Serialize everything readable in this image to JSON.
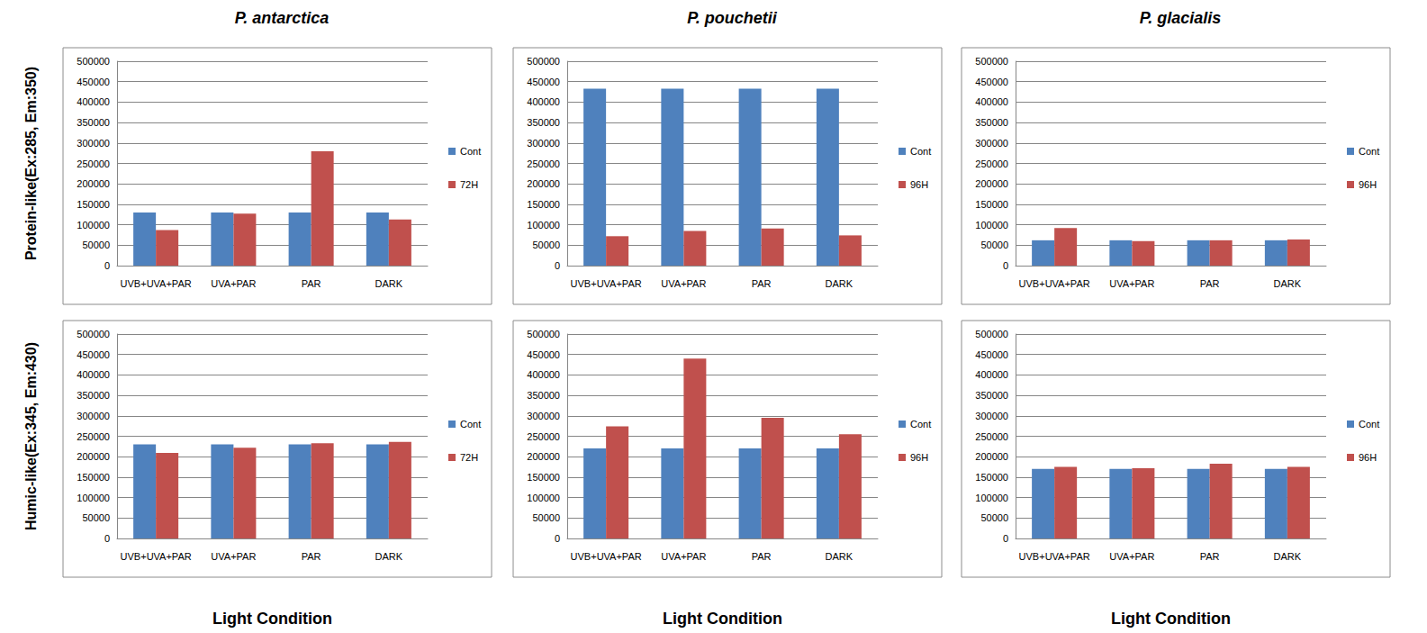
{
  "chart_data": [
    {
      "type": "bar",
      "title": "P. antarctica",
      "ylabel": "Protein-like(Ex:285, Em:350)",
      "categories": [
        "UVB+UVA+PAR",
        "UVA+PAR",
        "PAR",
        "DARK"
      ],
      "series": [
        {
          "name": "Cont",
          "color": "#4f81bd",
          "values": [
            130000,
            130000,
            130000,
            130000
          ]
        },
        {
          "name": "72H",
          "color": "#c0504d",
          "values": [
            87000,
            127000,
            280000,
            113000
          ]
        }
      ],
      "ylim": [
        0,
        500000
      ],
      "yticks": [
        0,
        50000,
        100000,
        150000,
        200000,
        250000,
        300000,
        350000,
        400000,
        450000,
        500000
      ],
      "grid": true,
      "legend": "right"
    },
    {
      "type": "bar",
      "title": "P. pouchetii",
      "categories": [
        "UVB+UVA+PAR",
        "UVA+PAR",
        "PAR",
        "DARK"
      ],
      "series": [
        {
          "name": "Cont",
          "color": "#4f81bd",
          "values": [
            433000,
            433000,
            433000,
            433000
          ]
        },
        {
          "name": "96H",
          "color": "#c0504d",
          "values": [
            72000,
            85000,
            91000,
            74000
          ]
        }
      ],
      "ylim": [
        0,
        500000
      ],
      "yticks": [
        0,
        50000,
        100000,
        150000,
        200000,
        250000,
        300000,
        350000,
        400000,
        450000,
        500000
      ],
      "grid": true,
      "legend": "right"
    },
    {
      "type": "bar",
      "title": "P. glacialis",
      "categories": [
        "UVB+UVA+PAR",
        "UVA+PAR",
        "PAR",
        "DARK"
      ],
      "series": [
        {
          "name": "Cont",
          "color": "#4f81bd",
          "values": [
            62000,
            62000,
            62000,
            62000
          ]
        },
        {
          "name": "96H",
          "color": "#c0504d",
          "values": [
            92000,
            60000,
            62000,
            64000
          ]
        }
      ],
      "ylim": [
        0,
        500000
      ],
      "yticks": [
        0,
        50000,
        100000,
        150000,
        200000,
        250000,
        300000,
        350000,
        400000,
        450000,
        500000
      ],
      "grid": true,
      "legend": "right"
    },
    {
      "type": "bar",
      "ylabel": "Humic-like(Ex:345, Em:430)",
      "xlabel": "Light Condition",
      "categories": [
        "UVB+UVA+PAR",
        "UVA+PAR",
        "PAR",
        "DARK"
      ],
      "series": [
        {
          "name": "Cont",
          "color": "#4f81bd",
          "values": [
            230000,
            230000,
            230000,
            230000
          ]
        },
        {
          "name": "72H",
          "color": "#c0504d",
          "values": [
            209000,
            222000,
            233000,
            236000
          ]
        }
      ],
      "ylim": [
        0,
        500000
      ],
      "yticks": [
        0,
        50000,
        100000,
        150000,
        200000,
        250000,
        300000,
        350000,
        400000,
        450000,
        500000
      ],
      "grid": true,
      "legend": "right"
    },
    {
      "type": "bar",
      "xlabel": "Light Condition",
      "categories": [
        "UVB+UVA+PAR",
        "UVA+PAR",
        "PAR",
        "DARK"
      ],
      "series": [
        {
          "name": "Cont",
          "color": "#4f81bd",
          "values": [
            220000,
            220000,
            220000,
            220000
          ]
        },
        {
          "name": "96H",
          "color": "#c0504d",
          "values": [
            274000,
            440000,
            295000,
            255000
          ]
        }
      ],
      "ylim": [
        0,
        500000
      ],
      "yticks": [
        0,
        50000,
        100000,
        150000,
        200000,
        250000,
        300000,
        350000,
        400000,
        450000,
        500000
      ],
      "grid": true,
      "legend": "right"
    },
    {
      "type": "bar",
      "xlabel": "Light Condition",
      "categories": [
        "UVB+UVA+PAR",
        "UVA+PAR",
        "PAR",
        "DARK"
      ],
      "series": [
        {
          "name": "Cont",
          "color": "#4f81bd",
          "values": [
            170000,
            170000,
            170000,
            170000
          ]
        },
        {
          "name": "96H",
          "color": "#c0504d",
          "values": [
            175000,
            172000,
            183000,
            175000
          ]
        }
      ],
      "ylim": [
        0,
        500000
      ],
      "yticks": [
        0,
        50000,
        100000,
        150000,
        200000,
        250000,
        300000,
        350000,
        400000,
        450000,
        500000
      ],
      "grid": true,
      "legend": "right"
    }
  ]
}
